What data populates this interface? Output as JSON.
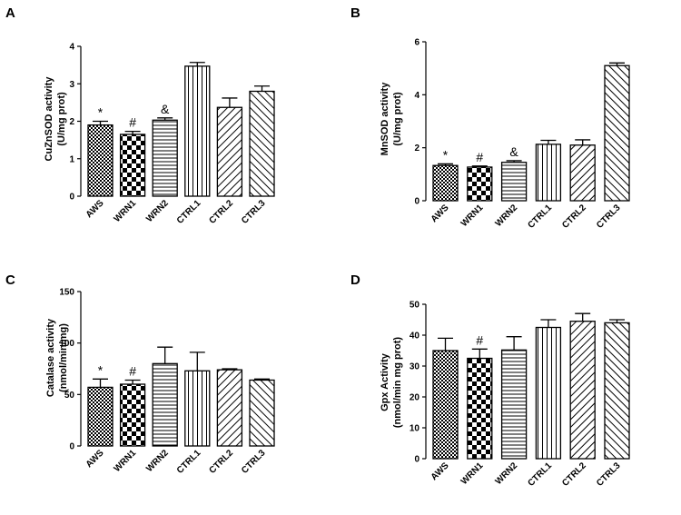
{
  "chart_data": [
    {
      "type": "bar",
      "panel": "A",
      "ylabel_line1": "CuZnSOD activity",
      "ylabel_line2": "(U/mg prot)",
      "categories": [
        "AWS",
        "WRN1",
        "WRN2",
        "CTRL1",
        "CTRL2",
        "CTRL3"
      ],
      "values": [
        1.9,
        1.65,
        2.03,
        3.47,
        2.37,
        2.8
      ],
      "errors": [
        0.1,
        0.08,
        0.06,
        0.1,
        0.25,
        0.14
      ],
      "annotations": [
        "*",
        "#",
        "&",
        "",
        "",
        ""
      ],
      "ylim": [
        0,
        4
      ],
      "yticks": [
        0,
        1,
        2,
        3,
        4
      ]
    },
    {
      "type": "bar",
      "panel": "B",
      "ylabel_line1": "MnSOD activity",
      "ylabel_line2": "(U/mg prot)",
      "categories": [
        "AWS",
        "WRN1",
        "WRN2",
        "CTRL1",
        "CTRL2",
        "CTRL3"
      ],
      "values": [
        1.33,
        1.27,
        1.45,
        2.13,
        2.1,
        5.1
      ],
      "errors": [
        0.06,
        0.04,
        0.06,
        0.15,
        0.2,
        0.1
      ],
      "annotations": [
        "*",
        "#",
        "&",
        "",
        "",
        ""
      ],
      "ylim": [
        0,
        6
      ],
      "yticks": [
        0,
        2,
        4,
        6
      ]
    },
    {
      "type": "bar",
      "panel": "C",
      "ylabel_line1": "Catalase activity",
      "ylabel_line2": "(nmol/min/mg)",
      "categories": [
        "AWS",
        "WRN1",
        "WRN2",
        "CTRL1",
        "CTRL2",
        "CTRL3"
      ],
      "values": [
        57,
        60,
        80,
        73,
        74,
        64
      ],
      "errors": [
        8,
        4,
        16,
        18,
        1,
        1
      ],
      "annotations": [
        "*",
        "#",
        "",
        "",
        "",
        ""
      ],
      "ylim": [
        0,
        150
      ],
      "yticks": [
        0,
        50,
        100,
        150
      ]
    },
    {
      "type": "bar",
      "panel": "D",
      "ylabel_line1": "Gpx Activity",
      "ylabel_line2": "(nmol/min mg prot)",
      "categories": [
        "AWS",
        "WRN1",
        "WRN2",
        "CTRL1",
        "CTRL2",
        "CTRL3"
      ],
      "values": [
        35,
        32.5,
        35.2,
        42.5,
        44.5,
        44
      ],
      "errors": [
        4,
        3,
        4.3,
        2.5,
        2.5,
        1
      ],
      "annotations": [
        "",
        "#",
        "",
        "",
        "",
        ""
      ],
      "ylim": [
        0,
        50
      ],
      "yticks": [
        0,
        10,
        20,
        30,
        40,
        50
      ]
    }
  ]
}
